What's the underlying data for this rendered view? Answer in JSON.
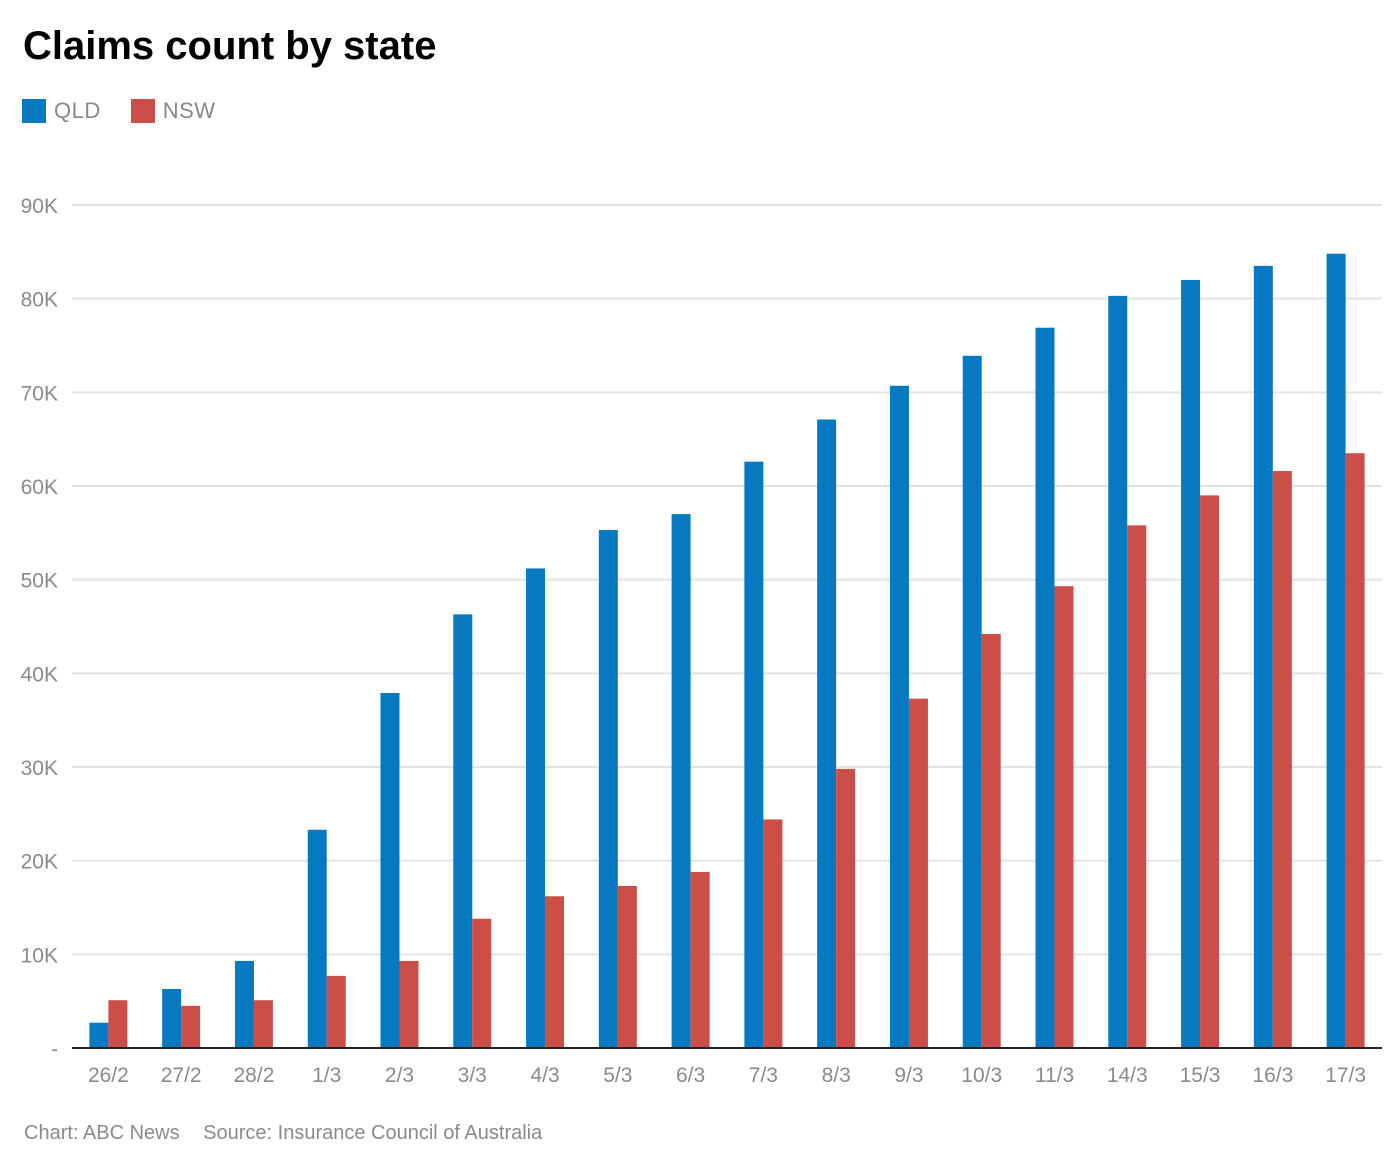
{
  "chart_data": {
    "type": "bar",
    "title": "Claims count by state",
    "categories": [
      "26/2",
      "27/2",
      "28/2",
      "1/3",
      "2/3",
      "3/3",
      "4/3",
      "5/3",
      "6/3",
      "7/3",
      "8/3",
      "9/3",
      "10/3",
      "11/3",
      "14/3",
      "15/3",
      "16/3",
      "17/3"
    ],
    "series": [
      {
        "name": "QLD",
        "color": "#0779c1",
        "values": [
          2700,
          6300,
          9300,
          23300,
          37900,
          46300,
          51200,
          55300,
          57000,
          62600,
          67100,
          70700,
          73900,
          76900,
          80300,
          82000,
          83500,
          84800
        ]
      },
      {
        "name": "NSW",
        "color": "#cc4e48",
        "values": [
          5100,
          4500,
          5100,
          7700,
          9300,
          13800,
          16200,
          17300,
          18800,
          24400,
          29800,
          37300,
          44200,
          49300,
          55800,
          59000,
          61600,
          63500
        ]
      }
    ],
    "ylim": [
      0,
      90000
    ],
    "yticks": [
      0,
      10000,
      20000,
      30000,
      40000,
      50000,
      60000,
      70000,
      80000,
      90000
    ],
    "ytick_labels": [
      "-",
      "10K",
      "20K",
      "30K",
      "40K",
      "50K",
      "60K",
      "70K",
      "80K",
      "90K"
    ],
    "xlabel": "",
    "ylabel": "",
    "grid": true,
    "legend_position": "top-left"
  },
  "footer": {
    "chart_credit": "Chart: ABC News",
    "source": "Source: Insurance Council of Australia"
  }
}
